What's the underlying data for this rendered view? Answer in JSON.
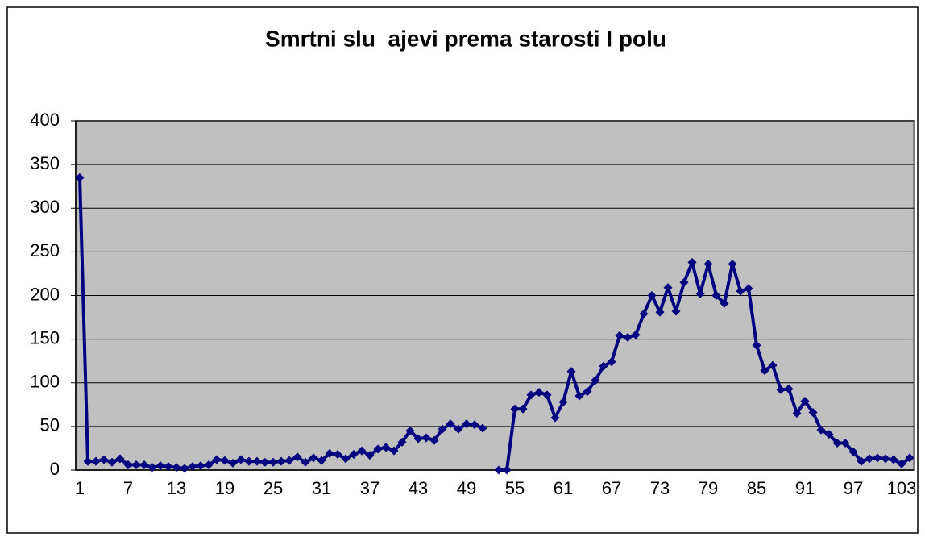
{
  "chart_data": {
    "type": "line",
    "title": "Smrtni slu  ajevi prema starosti I polu",
    "categories": [
      1,
      null,
      null,
      null,
      null,
      null,
      7,
      null,
      null,
      null,
      null,
      null,
      13,
      null,
      null,
      null,
      null,
      null,
      19,
      null,
      null,
      null,
      null,
      null,
      25,
      null,
      null,
      null,
      null,
      null,
      31,
      null,
      null,
      null,
      null,
      null,
      37,
      null,
      null,
      null,
      null,
      null,
      43,
      null,
      null,
      null,
      null,
      null,
      49,
      null,
      null,
      null,
      null,
      null,
      55,
      null,
      null,
      null,
      null,
      null,
      61,
      null,
      null,
      null,
      null,
      null,
      67,
      null,
      null,
      null,
      null,
      null,
      73,
      null,
      null,
      null,
      null,
      null,
      79,
      null,
      null,
      null,
      null,
      null,
      85,
      null,
      null,
      null,
      null,
      null,
      91,
      null,
      null,
      null,
      null,
      null,
      97,
      null,
      null,
      null,
      null,
      null,
      103,
      null
    ],
    "series": [
      {
        "color": "#000080",
        "values": [
          335,
          10,
          10,
          12,
          9,
          13,
          6,
          6,
          6,
          3,
          5,
          4,
          3,
          2,
          4,
          5,
          6,
          12,
          11,
          8,
          12,
          10,
          10,
          9,
          9,
          10,
          11,
          15,
          9,
          14,
          11,
          19,
          18,
          13,
          18,
          22,
          17,
          24,
          26,
          22,
          32,
          45,
          36,
          37,
          34,
          47,
          53,
          47,
          53,
          52,
          48,
          null,
          0,
          0,
          70,
          70,
          86,
          89,
          86,
          60,
          78,
          113,
          85,
          90,
          103,
          119,
          124,
          154,
          152,
          155,
          179,
          200,
          181,
          209,
          182,
          215,
          238,
          202,
          236,
          200,
          191,
          236,
          205,
          208,
          143,
          114,
          120,
          92,
          93,
          65,
          79,
          66,
          46,
          41,
          31,
          31,
          21,
          10,
          13,
          14,
          13,
          12,
          7,
          14
        ]
      }
    ],
    "ylim": [
      0,
      400
    ],
    "yticks": [
      0,
      50,
      100,
      150,
      200,
      250,
      300,
      350,
      400
    ],
    "grid": true
  }
}
